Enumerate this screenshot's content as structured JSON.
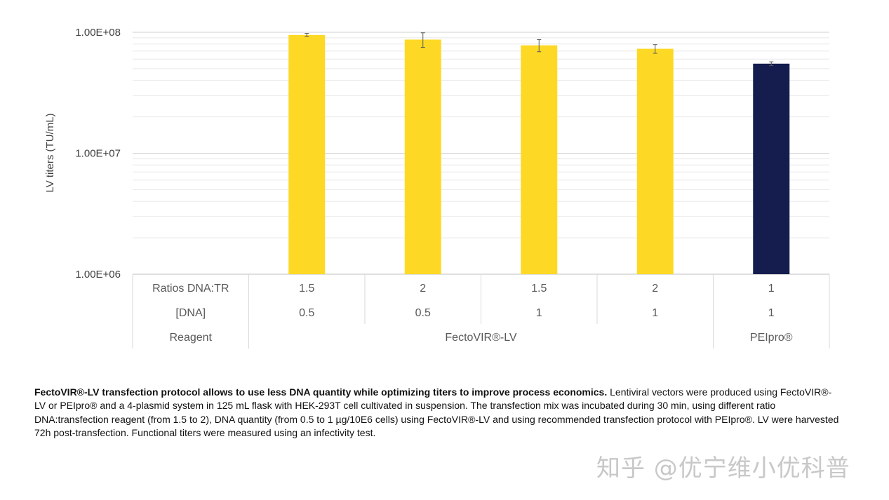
{
  "chart_data": {
    "type": "bar",
    "yscale": "log",
    "ylim": [
      1000000,
      100000000
    ],
    "ylabel": "LV titers (TU/mL)",
    "yticks": [
      {
        "value": 100000000,
        "label": "1.00E+08"
      },
      {
        "value": 10000000,
        "label": "1.00E+07"
      },
      {
        "value": 1000000,
        "label": "1.00E+06"
      }
    ],
    "grid": true,
    "colors": {
      "FectoVIR-LV": "#FDD925",
      "PEIpro": "#141D4E"
    },
    "groups": [
      {
        "ratio": "",
        "dna": "",
        "reagent": "",
        "value": null,
        "error": null,
        "color": null
      },
      {
        "ratio": "1.5",
        "dna": "0.5",
        "reagent": "FectoVIR®-LV",
        "value": 95000000,
        "error": 3000000,
        "color": "#FDD925"
      },
      {
        "ratio": "2",
        "dna": "0.5",
        "reagent": "FectoVIR®-LV",
        "value": 87000000,
        "error": 12000000,
        "color": "#FDD925"
      },
      {
        "ratio": "1.5",
        "dna": "1",
        "reagent": "FectoVIR®-LV",
        "value": 78000000,
        "error": 9000000,
        "color": "#FDD925"
      },
      {
        "ratio": "2",
        "dna": "1",
        "reagent": "FectoVIR®-LV",
        "value": 73000000,
        "error": 6000000,
        "color": "#FDD925"
      },
      {
        "ratio": "1",
        "dna": "1",
        "reagent": "PEIpro®",
        "value": 55000000,
        "error": 2000000,
        "color": "#141D4E"
      }
    ],
    "table": {
      "row_labels": [
        "Ratios DNA:TR",
        "[DNA]",
        "Reagent"
      ],
      "reagent_spans": [
        {
          "label": "FectoVIR®-LV",
          "from": 1,
          "to": 4
        },
        {
          "label": "PEIpro®",
          "from": 5,
          "to": 5
        }
      ]
    }
  },
  "caption": {
    "bold": "FectoVIR®-LV transfection protocol allows to use less DNA quantity while optimizing titers to improve process economics.",
    "text": " Lentiviral vectors were produced using FectoVIR®-LV or PEIpro® and a 4-plasmid system in 125 mL flask with HEK-293T cell cultivated in suspension. The transfection mix was incubated during 30 min, using different ratio DNA:transfection reagent (from 1.5 to 2), DNA quantity (from 0.5 to 1 µg/10E6 cells) using FectoVIR®-LV and using recommended transfection protocol with PEIpro®. LV were harvested 72h post-transfection. Functional titers were measured using an infectivity test."
  },
  "watermark": "知乎 @优宁维小优科普"
}
